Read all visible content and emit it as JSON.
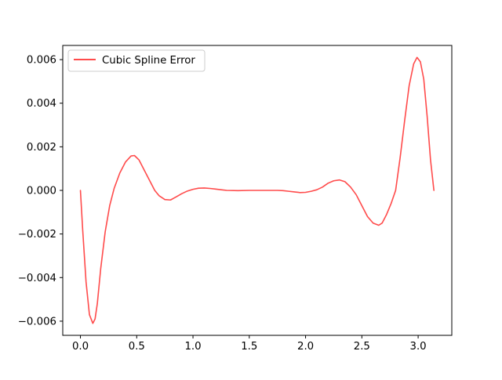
{
  "colors": {
    "series": "#ff4b4b",
    "axis": "#000000",
    "background": "#ffffff"
  },
  "chart_data": {
    "type": "line",
    "title": "",
    "xlabel": "",
    "ylabel": "",
    "xlim": [
      -0.157,
      3.299
    ],
    "ylim": [
      -0.00665,
      0.00665
    ],
    "x_ticks": [
      0.0,
      0.5,
      1.0,
      1.5,
      2.0,
      2.5,
      3.0
    ],
    "x_tick_labels": [
      "0.0",
      "0.5",
      "1.0",
      "1.5",
      "2.0",
      "2.5",
      "3.0"
    ],
    "y_ticks": [
      -0.006,
      -0.004,
      -0.002,
      0.0,
      0.002,
      0.004,
      0.006
    ],
    "y_tick_labels": [
      "−0.006",
      "−0.004",
      "−0.002",
      "0.000",
      "0.002",
      "0.004",
      "0.006"
    ],
    "grid": false,
    "legend": {
      "position": "upper-left"
    },
    "series": [
      {
        "name": "Cubic Spline Error",
        "color": "#ff4b4b",
        "x": [
          0.0,
          0.02,
          0.05,
          0.08,
          0.11,
          0.13,
          0.15,
          0.18,
          0.22,
          0.26,
          0.3,
          0.35,
          0.4,
          0.45,
          0.48,
          0.52,
          0.57,
          0.62,
          0.66,
          0.7,
          0.75,
          0.8,
          0.85,
          0.9,
          0.95,
          1.0,
          1.05,
          1.1,
          1.15,
          1.2,
          1.25,
          1.3,
          1.4,
          1.5,
          1.6,
          1.7,
          1.75,
          1.8,
          1.85,
          1.9,
          1.95,
          2.0,
          2.05,
          2.1,
          2.15,
          2.2,
          2.25,
          2.3,
          2.35,
          2.4,
          2.45,
          2.5,
          2.55,
          2.6,
          2.65,
          2.68,
          2.72,
          2.76,
          2.8,
          2.84,
          2.88,
          2.92,
          2.96,
          2.99,
          3.02,
          3.05,
          3.08,
          3.11,
          3.14
        ],
        "y": [
          0.0,
          -0.0018,
          -0.0042,
          -0.0057,
          -0.0061,
          -0.0059,
          -0.0052,
          -0.0036,
          -0.0019,
          -0.0007,
          0.0001,
          0.0008,
          0.0013,
          0.00158,
          0.0016,
          0.0014,
          0.0009,
          0.0004,
          0.0,
          -0.00025,
          -0.00042,
          -0.00044,
          -0.0003,
          -0.00015,
          -3e-05,
          5e-05,
          0.0001,
          0.00011,
          9e-05,
          6e-05,
          3e-05,
          0.0,
          -1e-05,
          0.0,
          0.0,
          0.0,
          0.0,
          -1e-05,
          -4e-05,
          -7e-05,
          -0.0001,
          -9e-05,
          -4e-05,
          3e-05,
          0.00015,
          0.00033,
          0.00044,
          0.00048,
          0.0004,
          0.00015,
          -0.0002,
          -0.0007,
          -0.0012,
          -0.0015,
          -0.0016,
          -0.0015,
          -0.0011,
          -0.0006,
          0.0,
          0.0015,
          0.0032,
          0.0048,
          0.0058,
          0.0061,
          0.0059,
          0.0051,
          0.0034,
          0.0014,
          0.0
        ]
      }
    ]
  }
}
